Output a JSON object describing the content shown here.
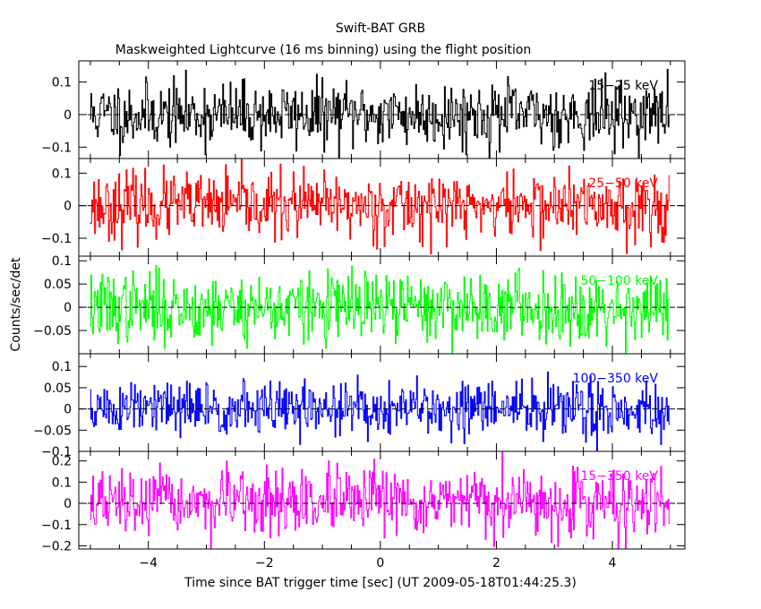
{
  "chart_data": {
    "type": "line",
    "title": "Swift-BAT GRB",
    "subtitle": "Maskweighted Lightcurve (16 ms binning) using the flight position",
    "xlabel": "Time since BAT trigger time [sec] (UT 2009-05-18T01:44:25.3)",
    "ylabel": "Counts/sec/det",
    "xlim": [
      -5.2,
      5.25
    ],
    "x_ticks": [
      -4,
      -2,
      0,
      2,
      4
    ],
    "x_tick_labels": [
      "−4",
      "−2",
      "0",
      "2",
      "4"
    ],
    "x_range_data": [
      -5.0,
      4.984
    ],
    "bin_size_sec": 0.016,
    "grid": false,
    "zero_line": "dashed",
    "panels": [
      {
        "band": "15−25 keV",
        "color": "#000000",
        "ylim": [
          -0.135,
          0.165
        ],
        "y_ticks": [
          -0.1,
          0,
          0.1
        ],
        "y_tick_labels": [
          "−0.1",
          "0",
          "0.1"
        ],
        "noise_amplitude": 0.05,
        "seed": 11
      },
      {
        "band": "25−50 keV",
        "color": "#ff0000",
        "ylim": [
          -0.155,
          0.145
        ],
        "y_ticks": [
          -0.1,
          0,
          0.1
        ],
        "y_tick_labels": [
          "−0.1",
          "0",
          "0.1"
        ],
        "noise_amplitude": 0.05,
        "seed": 23
      },
      {
        "band": "50−100 keV",
        "color": "#00ff00",
        "ylim": [
          -0.1,
          0.11
        ],
        "y_ticks": [
          -0.05,
          0,
          0.05,
          0.1
        ],
        "y_tick_labels": [
          "−0.05",
          "0",
          "0.05",
          "0.1"
        ],
        "noise_amplitude": 0.037,
        "seed": 37
      },
      {
        "band": "100−350 keV",
        "color": "#0000ff",
        "ylim": [
          -0.1,
          0.13
        ],
        "y_ticks": [
          -0.1,
          -0.05,
          0,
          0.05,
          0.1
        ],
        "y_tick_labels": [
          "−0.1",
          "−0.05",
          "0",
          "0.05",
          "0.1"
        ],
        "noise_amplitude": 0.033,
        "seed": 51
      },
      {
        "band": "15−350 keV",
        "color": "#ff00ff",
        "ylim": [
          -0.215,
          0.245
        ],
        "y_ticks": [
          -0.2,
          -0.1,
          0,
          0.1,
          0.2
        ],
        "y_tick_labels": [
          "−0.2",
          "−0.1",
          "0",
          "0.1",
          "0.2"
        ],
        "noise_amplitude": 0.075,
        "seed": 67
      }
    ]
  }
}
